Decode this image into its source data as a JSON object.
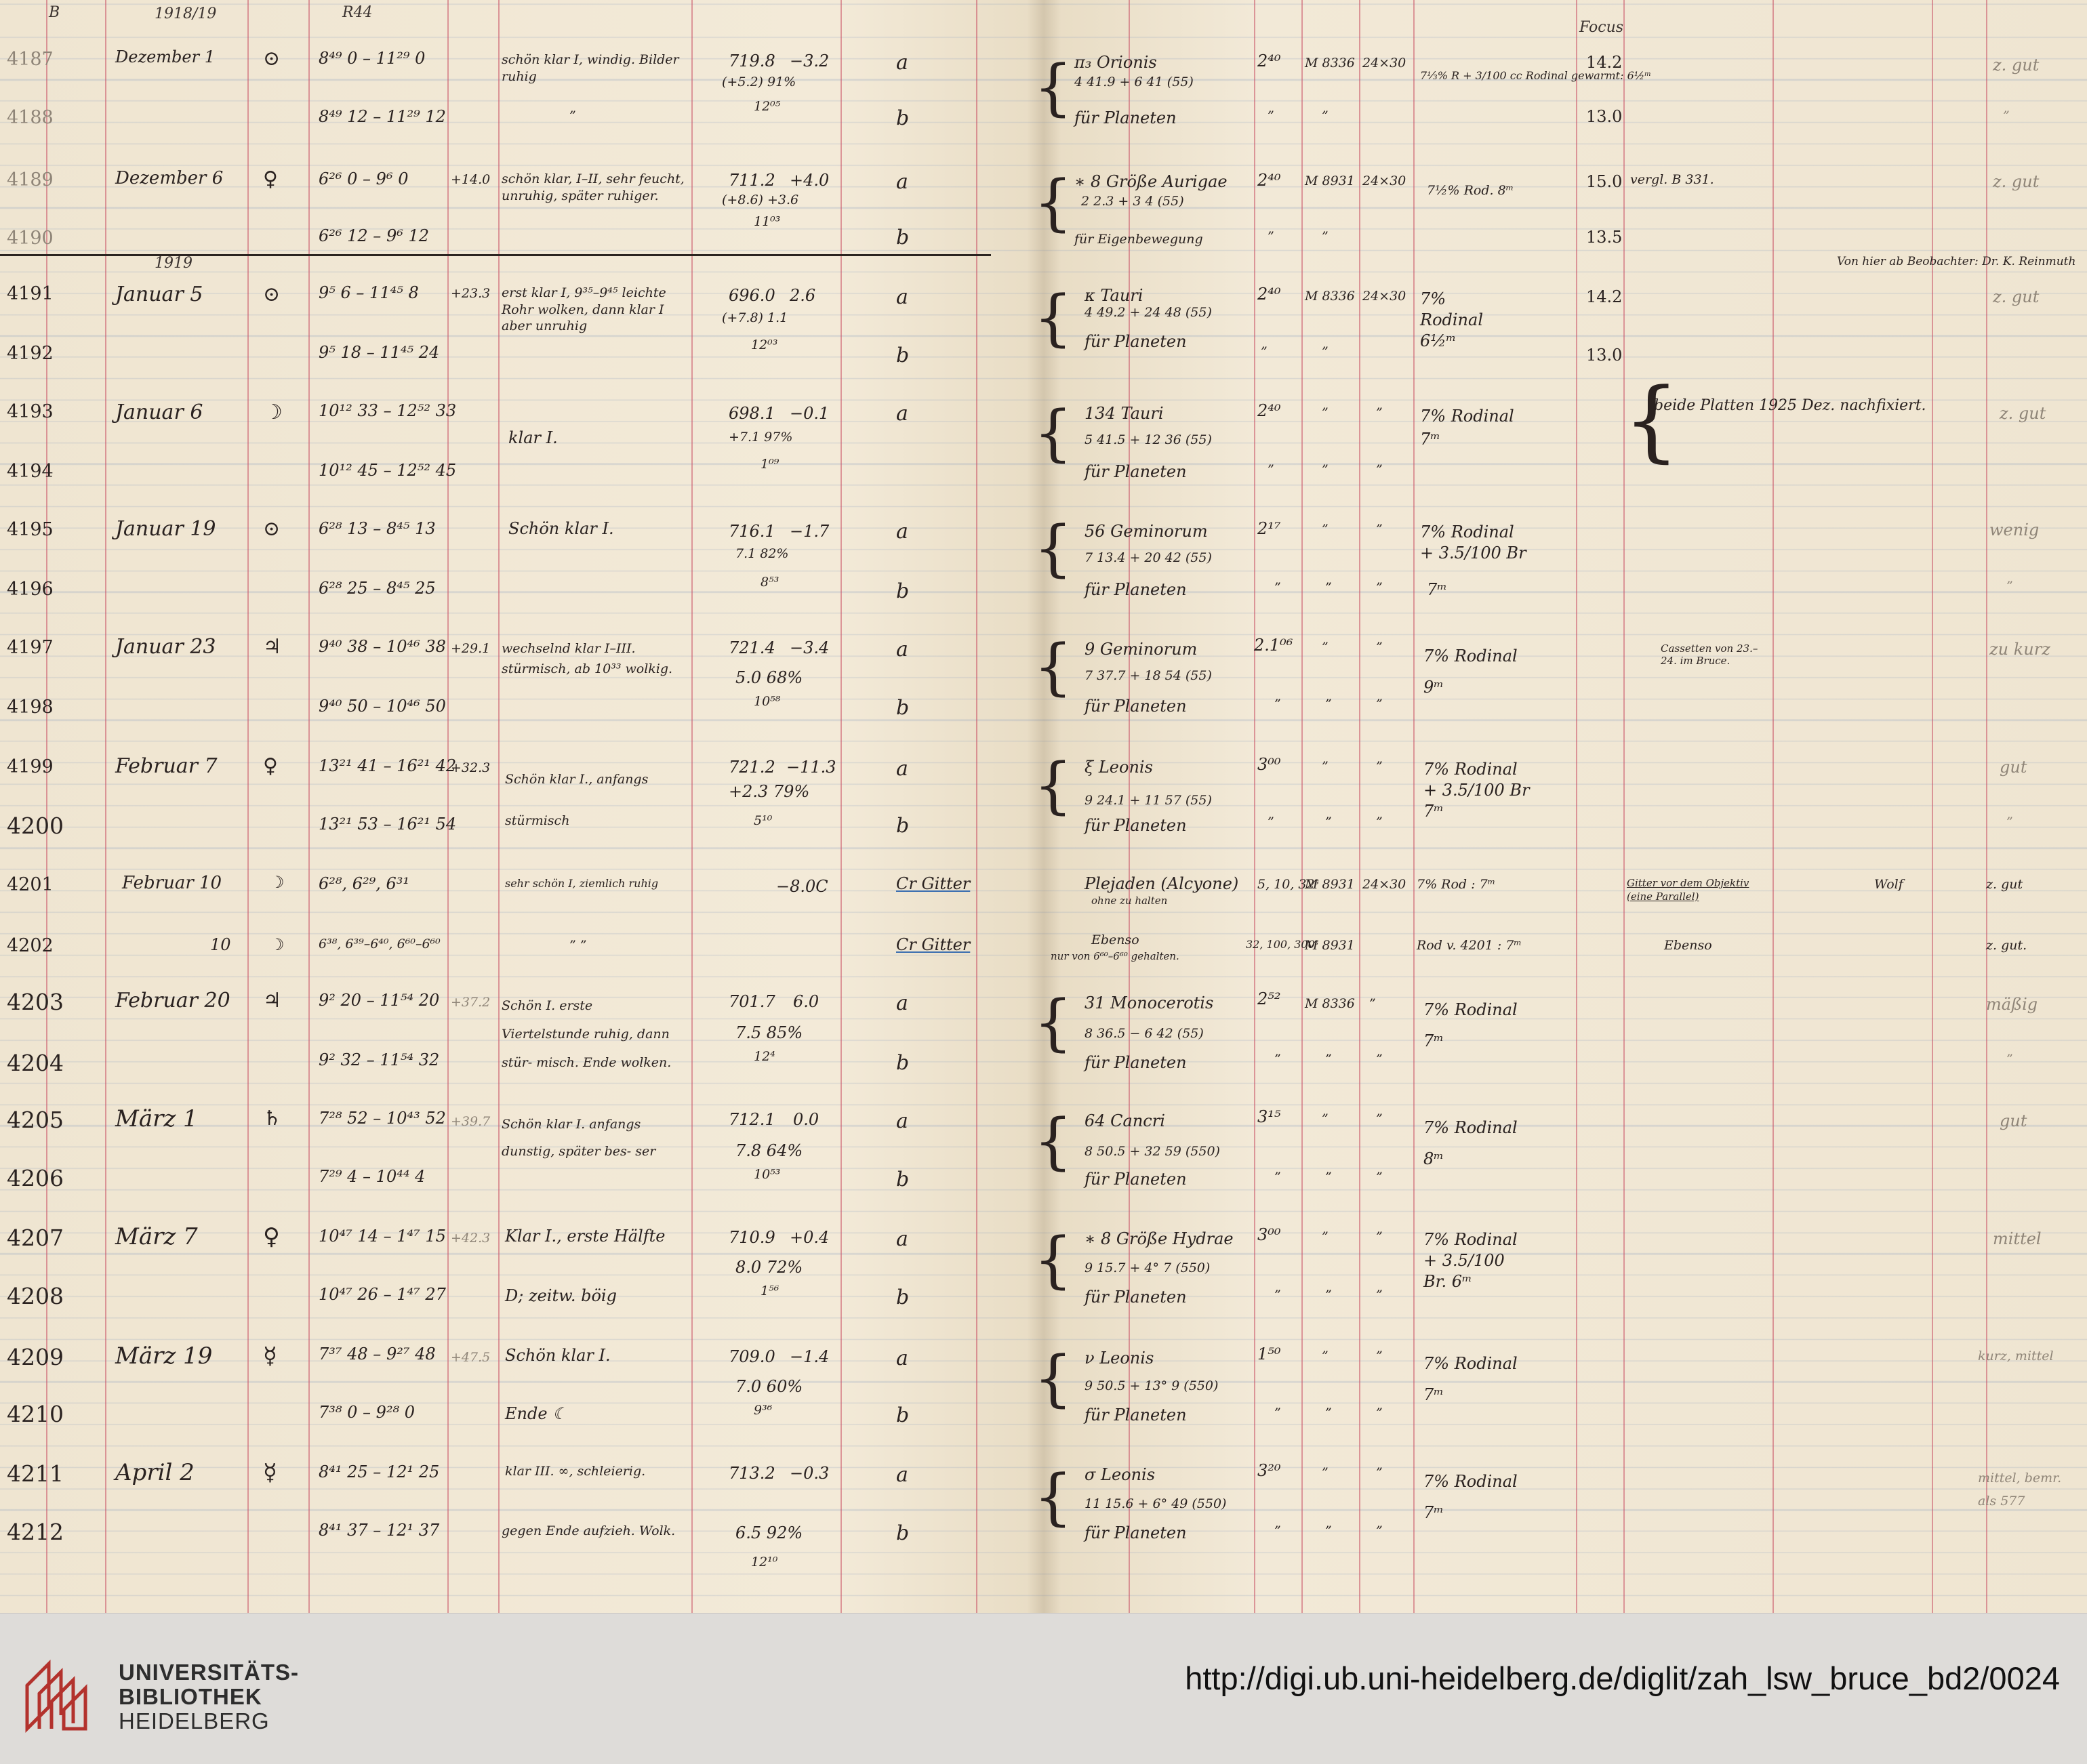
{
  "header": {
    "col_b": "B",
    "year": "1918/19",
    "col_r": "R44",
    "focus": "Focus",
    "year_1919": "1919",
    "observer_note": "Von hier ab Beobachter: Dr. K. Reinmuth"
  },
  "rows": [
    {
      "nr": "4187",
      "date": "Dezember 1",
      "sym": "⊙",
      "time": "8⁴⁹ 0 – 11²⁹ 0",
      "weather": "schön klar I, windig. Bilder ruhig",
      "temp": "",
      "baro": "719.8",
      "t": "−3.2",
      "extra": "(+5.2)  91%",
      "plate": "a",
      "object": "π₃ Orionis",
      "coords": "4 41.9 + 6 41 (55)",
      "exp": "2⁴⁰",
      "plate_no": "M 8336",
      "size": "24×30",
      "dev": "7⅓% R + 3/100 cc Rodinal gewarmt: 6½ᵐ",
      "focus": "14.2",
      "remark": "",
      "quality": "z. gut"
    },
    {
      "nr": "4188",
      "date": "",
      "sym": "",
      "time": "8⁴⁹ 12 – 11²⁹ 12",
      "weather": "”",
      "temp": "",
      "baro": "",
      "t": "12⁰⁵",
      "extra": "",
      "plate": "b",
      "object": "für Planeten",
      "coords": "",
      "exp": "”",
      "plate_no": "”",
      "size": "",
      "dev": "",
      "focus": "13.0",
      "remark": "",
      "quality": "”"
    },
    {
      "nr": "4189",
      "date": "Dezember 6",
      "sym": "♀",
      "time": "6²⁶ 0 – 9⁶ 0",
      "weather": "schön klar, I–II, sehr feucht, unruhig, später ruhiger.",
      "temp": "+14.0",
      "baro": "711.2",
      "t": "+4.0",
      "extra": "(+8.6)  +3.6",
      "plate": "a",
      "object": "∗ 8 Größe Aurigae",
      "coords": "2 2.3 + 3 4 (55)",
      "exp": "2⁴⁰",
      "plate_no": "M 8931",
      "size": "24×30",
      "dev": "7½% Rod. 8ᵐ",
      "focus": "15.0",
      "remark": "vergl. B 331.",
      "quality": "z. gut"
    },
    {
      "nr": "4190",
      "date": "",
      "sym": "",
      "time": "6²⁶ 12 – 9⁶ 12",
      "weather": "",
      "temp": "",
      "baro": "",
      "t": "11⁰³",
      "extra": "",
      "plate": "b",
      "object": "für Eigenbewegung",
      "coords": "",
      "exp": "”",
      "plate_no": "”",
      "size": "",
      "dev": "",
      "focus": "13.5",
      "remark": "",
      "quality": ""
    },
    {
      "nr": "4191",
      "date": "Januar 5",
      "sym": "⊙",
      "time": "9⁵ 6 – 11⁴⁵ 8",
      "weather": "erst klar I, 9³⁵–9⁴⁵ leichte Rohr wolken, dann klar I aber unruhig",
      "temp": "+23.3",
      "baro": "696.0",
      "t": "2.6",
      "extra": "(+7.8)  1.1",
      "plate": "a",
      "object": "κ Tauri",
      "coords": "4 49.2 + 24 48 (55)",
      "exp": "2⁴⁰",
      "plate_no": "M 8336",
      "size": "24×30",
      "dev": "7% Rodinal 6½ᵐ",
      "focus": "14.2",
      "remark": "",
      "quality": "z. gut"
    },
    {
      "nr": "4192",
      "date": "",
      "sym": "",
      "time": "9⁵ 18 – 11⁴⁵ 24",
      "weather": "",
      "temp": "",
      "baro": "",
      "t": "12⁰³",
      "extra": "",
      "plate": "b",
      "object": "für Planeten",
      "coords": "",
      "exp": "”",
      "plate_no": "”",
      "size": "",
      "dev": "",
      "focus": "13.0",
      "remark": "",
      "quality": ""
    },
    {
      "nr": "4193",
      "date": "Januar 6",
      "sym": "☽",
      "time": "10¹² 33 – 12⁵² 33",
      "weather": "klar I.",
      "temp": "",
      "baro": "698.1",
      "t": "−0.1",
      "extra": "+7.1  97%",
      "plate": "a",
      "object": "134 Tauri",
      "coords": "5 41.5 + 12 36 (55)",
      "exp": "2⁴⁰",
      "plate_no": "”",
      "size": "”",
      "dev": "7% Rodinal 7ᵐ",
      "focus": "",
      "remark": "beide Platten 1925 Dez. nachfixiert.",
      "quality": "z. gut"
    },
    {
      "nr": "4194",
      "date": "",
      "sym": "",
      "time": "10¹² 45 – 12⁵² 45",
      "weather": "",
      "temp": "",
      "baro": "",
      "t": "1⁰⁹",
      "extra": "",
      "plate": "b",
      "object": "für Planeten",
      "coords": "",
      "exp": "”",
      "plate_no": "”",
      "size": "”",
      "dev": "",
      "focus": "",
      "remark": "",
      "quality": ""
    },
    {
      "nr": "4195",
      "date": "Januar 19",
      "sym": "⊙",
      "time": "6²⁸ 13 – 8⁴⁵ 13",
      "weather": "Schön klar I.",
      "temp": "",
      "baro": "716.1",
      "t": "−1.7",
      "extra": "7.1  82%",
      "plate": "a",
      "object": "56 Geminorum",
      "coords": "7 13.4 + 20 42 (55)",
      "exp": "2¹⁷",
      "plate_no": "”",
      "size": "”",
      "dev": "7% Rodinal + 3.5/100 Br",
      "focus": "",
      "remark": "",
      "quality": "wenig"
    },
    {
      "nr": "4196",
      "date": "",
      "sym": "",
      "time": "6²⁸ 25 – 8⁴⁵ 25",
      "weather": "",
      "temp": "",
      "baro": "",
      "t": "8⁵³",
      "extra": "",
      "plate": "b",
      "object": "für Planeten",
      "coords": "",
      "exp": "”",
      "plate_no": "”",
      "size": "”",
      "dev": "7ᵐ",
      "focus": "",
      "remark": "",
      "quality": "”"
    },
    {
      "nr": "4197",
      "date": "Januar 23",
      "sym": "♃",
      "time": "9⁴⁰ 38 – 10⁴⁶ 38",
      "weather": "wechselnd klar I–III. stürmisch, ab 10³³ wolkig.",
      "temp": "+29.1",
      "baro": "721.4",
      "t": "−3.4",
      "extra": "5.0  68%",
      "plate": "a",
      "object": "9 Geminorum",
      "coords": "7 37.7 + 18 54 (55)",
      "exp": "2.1⁰⁶",
      "plate_no": "”",
      "size": "”",
      "dev": "7% Rodinal 9ᵐ",
      "focus": "",
      "remark": "Cassetten von 23.–24. im Bruce.",
      "quality": "zu kurz"
    },
    {
      "nr": "4198",
      "date": "",
      "sym": "",
      "time": "9⁴⁰ 50 – 10⁴⁶ 50",
      "weather": "",
      "temp": "",
      "baro": "",
      "t": "10⁵⁸",
      "extra": "",
      "plate": "b",
      "object": "für Planeten",
      "coords": "",
      "exp": "”",
      "plate_no": "”",
      "size": "”",
      "dev": "",
      "focus": "",
      "remark": "",
      "quality": ""
    },
    {
      "nr": "4199",
      "date": "Februar 7",
      "sym": "♀",
      "time": "13²¹ 41 – 16²¹ 42",
      "weather": "Schön klar I., anfangs stürmisch",
      "temp": "+32.3",
      "baro": "721.2",
      "t": "−11.3",
      "extra": "+2.3  79%",
      "plate": "a",
      "object": "ξ Leonis",
      "coords": "9 24.1 + 11 57 (55)",
      "exp": "3⁰⁰",
      "plate_no": "”",
      "size": "”",
      "dev": "7% Rodinal + 3.5/100 Br 7ᵐ",
      "focus": "",
      "remark": "",
      "quality": "gut"
    },
    {
      "nr": "4200",
      "date": "",
      "sym": "",
      "time": "13²¹ 53 – 16²¹ 54",
      "weather": "",
      "temp": "",
      "baro": "",
      "t": "5¹⁰",
      "extra": "",
      "plate": "b",
      "object": "für Planeten",
      "coords": "",
      "exp": "”",
      "plate_no": "”",
      "size": "”",
      "dev": "",
      "focus": "",
      "remark": "",
      "quality": "”"
    },
    {
      "nr": "4201",
      "date": "Februar 10",
      "sym": "☽",
      "time": "6²⁸, 6²⁹, 6³¹",
      "weather": "sehr schön I, ziemlich ruhig",
      "temp": "",
      "baro": "",
      "t": "−8.0C",
      "extra": "",
      "plate": "Cr Gitter",
      "object": "Plejaden (Alcyone)",
      "coords": "ohne zu halten",
      "exp": "5, 10, 32ˢ",
      "plate_no": "M 8931",
      "size": "24×30",
      "dev": "7% Rod : 7ᵐ",
      "focus": "",
      "remark": "Gitter vor dem Objektiv (eine Parallel)",
      "quality": "z. gut",
      "observer": "Wolf"
    },
    {
      "nr": "4202",
      "date": "10",
      "sym": "☽",
      "time": "6³⁸, 6³⁹–6⁴⁰, 6⁶⁰–6⁶⁰",
      "weather": "”  ”",
      "temp": "",
      "baro": "",
      "t": "",
      "extra": "",
      "plate": "Cr Gitter",
      "object": "Ebenso",
      "coords": "nur von 6⁶⁰–6⁶⁰ gehalten.",
      "exp": "32, 100, 300ˢ",
      "plate_no": "M 8931",
      "size": "",
      "dev": "Rod v. 4201 : 7ᵐ",
      "focus": "",
      "remark": "Ebenso",
      "quality": "z. gut."
    },
    {
      "nr": "4203",
      "date": "Februar 20",
      "sym": "♃",
      "time": "9² 20 – 11⁵⁴ 20",
      "weather": "Schön I. erste Viertelstunde ruhig, dann stür- misch. Ende wolken.",
      "temp": "+37.2",
      "baro": "701.7",
      "t": "6.0",
      "extra": "7.5  85%",
      "plate": "a",
      "object": "31 Monocerotis",
      "coords": "8 36.5 − 6 42 (55)",
      "exp": "2⁵²",
      "plate_no": "M 8336",
      "size": "”",
      "dev": "7% Rodinal 7ᵐ",
      "focus": "",
      "remark": "",
      "quality": "mäßig"
    },
    {
      "nr": "4204",
      "date": "",
      "sym": "",
      "time": "9² 32 – 11⁵⁴ 32",
      "weather": "",
      "temp": "",
      "baro": "",
      "t": "12⁴",
      "extra": "",
      "plate": "b",
      "object": "für Planeten",
      "coords": "",
      "exp": "”",
      "plate_no": "”",
      "size": "”",
      "dev": "",
      "focus": "",
      "remark": "",
      "quality": "”"
    },
    {
      "nr": "4205",
      "date": "März 1",
      "sym": "♄",
      "time": "7²⁸ 52 – 10⁴³ 52",
      "weather": "Schön klar I. anfangs dunstig, später bes- ser",
      "temp": "+39.7",
      "baro": "712.1",
      "t": "0.0",
      "extra": "7.8  64%",
      "plate": "a",
      "object": "64 Cancri",
      "coords": "8 50.5 + 32 59 (550)",
      "exp": "3¹⁵",
      "plate_no": "”",
      "size": "”",
      "dev": "7% Rodinal 8ᵐ",
      "focus": "",
      "remark": "",
      "quality": "gut"
    },
    {
      "nr": "4206",
      "date": "",
      "sym": "",
      "time": "7²⁹ 4 – 10⁴⁴ 4",
      "weather": "",
      "temp": "",
      "baro": "",
      "t": "10⁵³",
      "extra": "",
      "plate": "b",
      "object": "für Planeten",
      "coords": "",
      "exp": "”",
      "plate_no": "”",
      "size": "”",
      "dev": "",
      "focus": "",
      "remark": "",
      "quality": ""
    },
    {
      "nr": "4207",
      "date": "März 7",
      "sym": "♀",
      "time": "10⁴⁷ 14 – 1⁴⁷ 15",
      "weather": "Klar I., erste Hälfte",
      "temp": "+42.3",
      "baro": "710.9",
      "t": "+0.4",
      "extra": "8.0  72%",
      "plate": "a",
      "object": "∗ 8 Größe Hydrae",
      "coords": "9 15.7 + 4° 7 (550)",
      "exp": "3⁰⁰",
      "plate_no": "”",
      "size": "”",
      "dev": "7% Rodinal + 3.5/100 Br. 6ᵐ",
      "focus": "",
      "remark": "",
      "quality": "mittel"
    },
    {
      "nr": "4208",
      "date": "",
      "sym": "",
      "time": "10⁴⁷ 26 – 1⁴⁷ 27",
      "weather": "D; zeitw. böig",
      "temp": "",
      "baro": "",
      "t": "1⁵⁶",
      "extra": "",
      "plate": "b",
      "object": "für Planeten",
      "coords": "",
      "exp": "”",
      "plate_no": "”",
      "size": "”",
      "dev": "",
      "focus": "",
      "remark": "",
      "quality": ""
    },
    {
      "nr": "4209",
      "date": "März 19",
      "sym": "☿",
      "time": "7³⁷ 48 – 9²⁷ 48",
      "weather": "Schön klar I.",
      "temp": "+47.5",
      "baro": "709.0",
      "t": "−1.4",
      "extra": "7.0  60%",
      "plate": "a",
      "object": "ν Leonis",
      "coords": "9 50.5 + 13° 9 (550)",
      "exp": "1⁵⁰",
      "plate_no": "”",
      "size": "”",
      "dev": "7% Rodinal 7ᵐ",
      "focus": "",
      "remark": "",
      "quality": "kurz, mittel"
    },
    {
      "nr": "4210",
      "date": "",
      "sym": "",
      "time": "7³⁸ 0 – 9²⁸ 0",
      "weather": "Ende ☾",
      "temp": "",
      "baro": "",
      "t": "9³⁶",
      "extra": "",
      "plate": "b",
      "object": "für Planeten",
      "coords": "",
      "exp": "”",
      "plate_no": "”",
      "size": "”",
      "dev": "",
      "focus": "",
      "remark": "",
      "quality": ""
    },
    {
      "nr": "4211",
      "date": "April 2",
      "sym": "☿",
      "time": "8⁴¹ 25 – 12¹ 25",
      "weather": "klar III. ∞, schleierig.",
      "temp": "",
      "baro": "713.2",
      "t": "−0.3",
      "extra": "6.5  92%",
      "plate": "a",
      "object": "σ Leonis",
      "coords": "11 15.6 + 6° 49 (550)",
      "exp": "3²⁰",
      "plate_no": "”",
      "size": "”",
      "dev": "7% Rodinal 7ᵐ",
      "focus": "",
      "remark": "",
      "quality": "mittel, bemr. als 577"
    },
    {
      "nr": "4212",
      "date": "",
      "sym": "",
      "time": "8⁴¹ 37 – 12¹ 37",
      "weather": "gegen Ende aufzieh. Wolk.",
      "temp": "",
      "baro": "",
      "t": "12¹⁰",
      "extra": "",
      "plate": "b",
      "object": "für Planeten",
      "coords": "",
      "exp": "”",
      "plate_no": "”",
      "size": "”",
      "dev": "",
      "focus": "",
      "remark": "",
      "quality": ""
    }
  ],
  "footer": {
    "logo_line1": "UNIVERSITÄTS-",
    "logo_line2": "BIBLIOTHEK",
    "logo_line3": "HEIDELBERG",
    "url": "http://digi.ub.uni-heidelberg.de/diglit/zah_lsw_bruce_bd2/0024",
    "logo_color": "#b3322d"
  }
}
